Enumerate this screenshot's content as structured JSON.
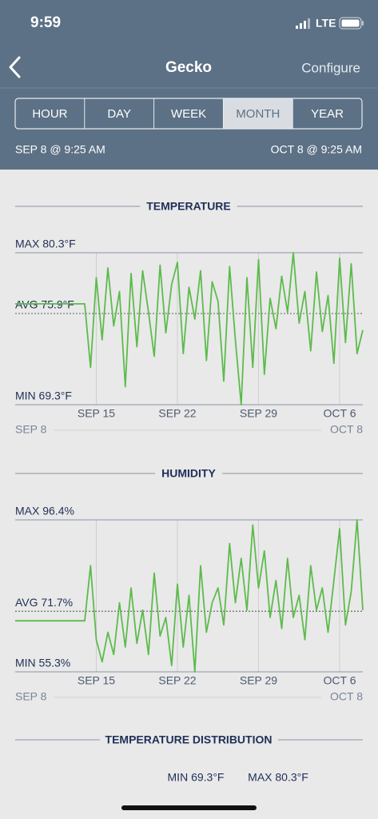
{
  "status": {
    "time": "9:59",
    "network": "LTE"
  },
  "header": {
    "title": "Gecko",
    "action": "Configure"
  },
  "tabs": {
    "items": [
      "HOUR",
      "DAY",
      "WEEK",
      "MONTH",
      "YEAR"
    ],
    "selected": 3
  },
  "range": {
    "start": "SEP 8 @ 9:25 AM",
    "end": "OCT 8 @ 9:25 AM"
  },
  "chart_data": [
    {
      "type": "line",
      "title": "TEMPERATURE",
      "color": "#5dbb4c",
      "x_start": "SEP 8",
      "x_end": "OCT 8",
      "xticks": [
        "SEP 15",
        "SEP 22",
        "SEP 29",
        "OCT 6"
      ],
      "ylim": [
        69.3,
        80.3
      ],
      "yticks": [
        {
          "value": 80.3,
          "label": "MAX 80.3°F"
        },
        {
          "value": 75.9,
          "label": "AVG 75.9°F"
        },
        {
          "value": 69.3,
          "label": "MIN 69.3°F"
        }
      ],
      "values": [
        76.6,
        76.6,
        76.6,
        76.6,
        76.6,
        76.6,
        76.6,
        76.6,
        76.6,
        76.6,
        76.6,
        76.6,
        76.6,
        72.0,
        78.5,
        74.0,
        79.2,
        75.0,
        77.5,
        70.6,
        78.8,
        73.5,
        79.0,
        76.0,
        72.8,
        79.4,
        74.5,
        78.0,
        79.6,
        73.0,
        77.8,
        75.5,
        79.0,
        72.5,
        78.2,
        76.8,
        71.0,
        79.3,
        74.0,
        69.3,
        78.5,
        72.0,
        79.8,
        71.5,
        77.0,
        74.8,
        78.6,
        76.0,
        80.3,
        75.2,
        77.5,
        73.2,
        78.9,
        74.6,
        77.2,
        72.3,
        79.9,
        73.8,
        79.5,
        73.0,
        74.7
      ]
    },
    {
      "type": "line",
      "title": "HUMIDITY",
      "color": "#5dbb4c",
      "x_start": "SEP 8",
      "x_end": "OCT 8",
      "xticks": [
        "SEP 15",
        "SEP 22",
        "SEP 29",
        "OCT 6"
      ],
      "ylim": [
        55.3,
        96.4
      ],
      "yticks": [
        {
          "value": 96.4,
          "label": "MAX 96.4%"
        },
        {
          "value": 71.7,
          "label": "AVG 71.7%"
        },
        {
          "value": 55.3,
          "label": "MIN 55.3%"
        }
      ],
      "values": [
        69.1,
        69.1,
        69.1,
        69.1,
        69.1,
        69.1,
        69.1,
        69.1,
        69.1,
        69.1,
        69.1,
        69.1,
        69.1,
        84.0,
        64.0,
        58.0,
        66.0,
        60.0,
        74.0,
        62.0,
        78.0,
        63.0,
        72.0,
        60.0,
        82.0,
        65.0,
        70.0,
        57.0,
        79.0,
        62.0,
        76.0,
        55.3,
        84.0,
        66.0,
        74.0,
        78.0,
        68.0,
        90.0,
        74.0,
        86.0,
        72.0,
        95.0,
        78.0,
        88.0,
        70.0,
        80.0,
        67.0,
        86.0,
        70.0,
        76.0,
        64.0,
        84.0,
        72.0,
        78.0,
        66.0,
        80.0,
        94.0,
        68.0,
        77.0,
        96.4,
        72.0
      ]
    }
  ],
  "distribution": {
    "title": "TEMPERATURE DISTRIBUTION",
    "min_label": "MIN 69.3°F",
    "max_label": "MAX 80.3°F"
  }
}
